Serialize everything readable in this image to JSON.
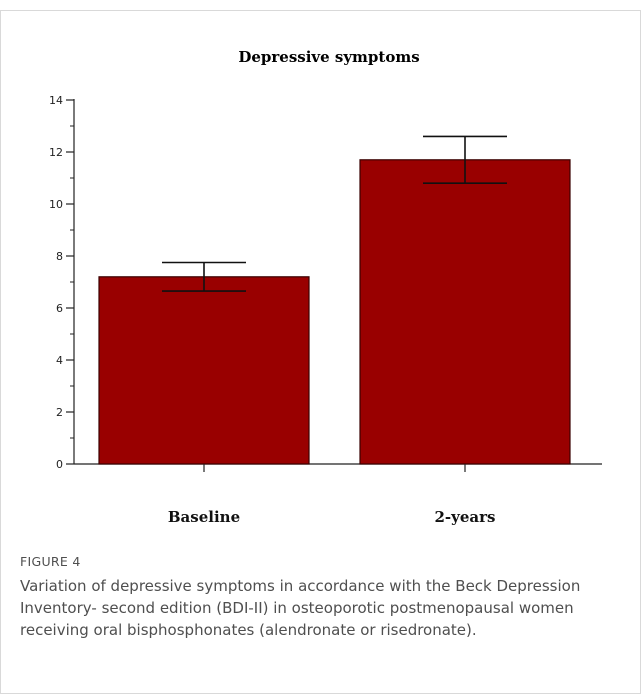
{
  "figure": {
    "label": "FIGURE 4",
    "caption": "Variation of depressive symptoms in accordance with the Beck Depression Inventory- second edition (BDI-II) in osteoporotic postmenopausal women receiving oral bisphosphonates (alendronate or risedronate)."
  },
  "chart_data": {
    "type": "bar",
    "title": "Depressive symptoms",
    "categories": [
      "Baseline",
      "2-years"
    ],
    "values": [
      7.2,
      11.7
    ],
    "error": [
      0.55,
      0.9
    ],
    "ylim": [
      0,
      14
    ],
    "yticks": [
      0,
      2,
      4,
      6,
      8,
      10,
      12,
      14
    ],
    "xlabel": "",
    "ylabel": "",
    "grid": false,
    "bar_color": "#990000",
    "bar_edge_color": "#3a0000"
  }
}
